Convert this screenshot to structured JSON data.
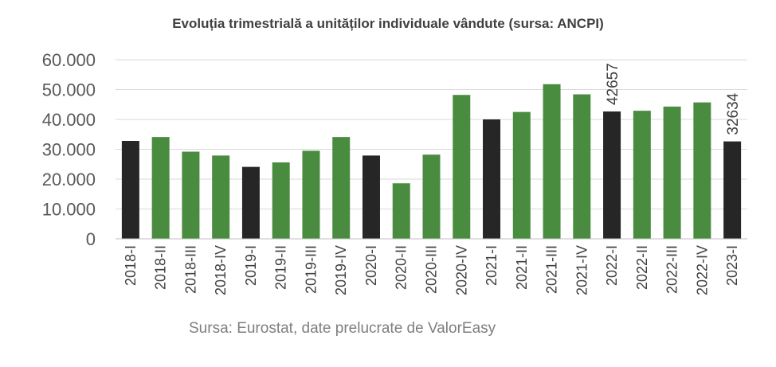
{
  "chart_data": {
    "type": "bar",
    "title": "Evoluția trimestrială a unităților individuale vândute (sursa: ANCPI)",
    "source_note": "Sursa: Eurostat, date prelucrate de ValorEasy",
    "categories": [
      "2018-I",
      "2018-II",
      "2018-III",
      "2018-IV",
      "2019-I",
      "2019-II",
      "2019-III",
      "2019-IV",
      "2020-I",
      "2020-II",
      "2020-III",
      "2020-IV",
      "2021-I",
      "2021-II",
      "2021-III",
      "2021-IV",
      "2022-I",
      "2022-II",
      "2022-III",
      "2022-IV",
      "2023-I"
    ],
    "values": [
      32800,
      34100,
      29200,
      27900,
      24100,
      25600,
      29500,
      34100,
      27900,
      18600,
      28200,
      48200,
      40000,
      42500,
      51800,
      48400,
      42657,
      42900,
      44300,
      45700,
      32634
    ],
    "highlight": [
      true,
      false,
      false,
      false,
      true,
      false,
      false,
      false,
      true,
      false,
      false,
      false,
      true,
      false,
      false,
      false,
      true,
      false,
      false,
      false,
      true
    ],
    "data_labels": [
      {
        "index": 16,
        "text": "42657"
      },
      {
        "index": 20,
        "text": "32634"
      }
    ],
    "yticks": [
      "0",
      "10.000",
      "20.000",
      "30.000",
      "40.000",
      "50.000",
      "60.000"
    ],
    "ylim": [
      0,
      60000
    ],
    "grid": true,
    "colors": {
      "highlight": "#262626",
      "regular": "#4a8c3f",
      "grid": "#d9d9d9"
    }
  }
}
